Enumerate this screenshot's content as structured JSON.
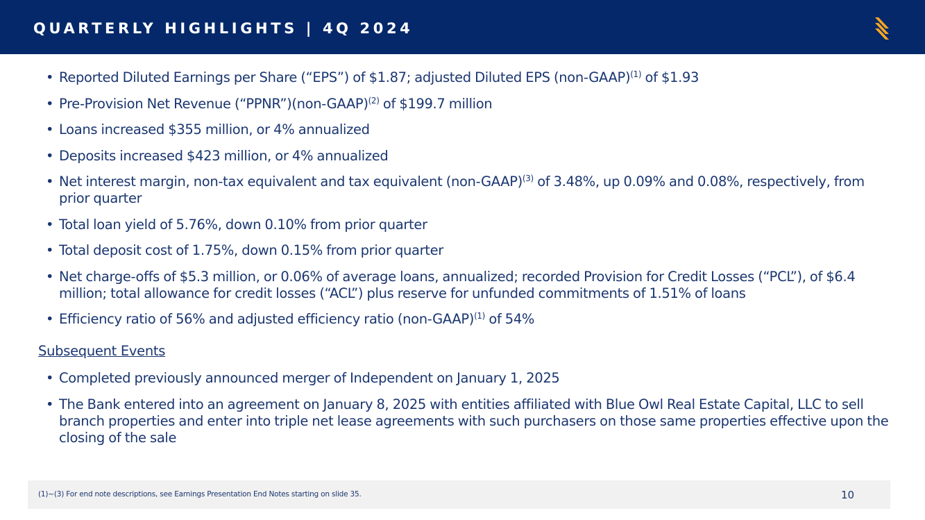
{
  "header": {
    "title": "QUARTERLY HIGHLIGHTS | 4Q 2024",
    "logo_icon": "brand-s-logo-icon",
    "logo_color": "#f5a623",
    "background_color": "#04286a"
  },
  "highlights": [
    {
      "text": "Reported Diluted Earnings per Share (“EPS”) of $1.87; adjusted Diluted EPS (non-GAAP)",
      "sup": "(1)",
      "after": " of $1.93"
    },
    {
      "text": "Pre-Provision Net Revenue (“PPNR”)(non-GAAP)",
      "sup": "(2)",
      "after": " of $199.7 million"
    },
    {
      "text": "Loans increased $355 million, or 4% annualized"
    },
    {
      "text": "Deposits increased $423 million, or 4% annualized"
    },
    {
      "text": "Net interest margin, non-tax equivalent and tax equivalent (non-GAAP)",
      "sup": "(3)",
      "after": " of 3.48%, up 0.09% and 0.08%, respectively, from prior quarter"
    },
    {
      "text": "Total loan yield of 5.76%, down 0.10% from prior quarter"
    },
    {
      "text": "Total deposit cost of 1.75%, down 0.15% from prior quarter"
    },
    {
      "text": "Net charge-offs of $5.3 million, or 0.06% of average loans, annualized; recorded Provision for Credit Losses (“PCL”), of $6.4 million; total allowance for credit losses (“ACL”) plus reserve for unfunded commitments of 1.51% of loans"
    },
    {
      "text": "Efficiency ratio of 56% and adjusted efficiency ratio (non-GAAP)",
      "sup": "(1)",
      "after": " of 54%"
    }
  ],
  "subsequent_events": {
    "heading": "Subsequent Events",
    "items": [
      {
        "text": "Completed previously announced merger of Independent on January 1, 2025"
      },
      {
        "text": "The Bank entered into an agreement on January 8, 2025 with entities affiliated with Blue Owl Real Estate Capital, LLC to sell branch properties and enter into triple net lease agreements with such purchasers on those same properties effective upon the closing of the sale"
      }
    ]
  },
  "footer": {
    "note": "(1)~(3)  For end note descriptions, see Earnings Presentation End Notes starting on slide 35.",
    "page_number": "10"
  }
}
